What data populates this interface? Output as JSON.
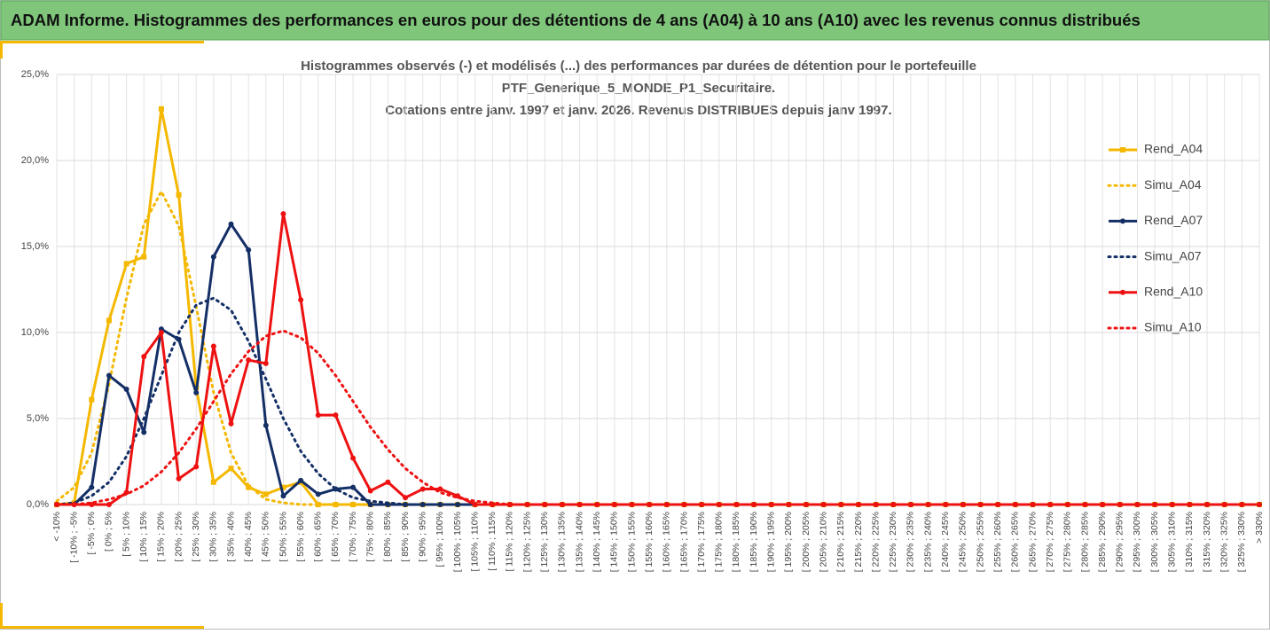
{
  "header": {
    "title": "ADAM Informe. Histogrammes des performances en euros pour des détentions de 4 ans (A04) à 10 ans (A10) avec les revenus connus distribués"
  },
  "chart_data": {
    "type": "line",
    "title": [
      "Histogrammes observés (-) et modélisés (...) des performances par durées de détention pour le portefeuille",
      "PTF_Generique_5_MONDE_P1_Securitaire.",
      "Cotations entre janv. 1997 et janv. 2026. Revenus DISTRIBUES depuis janv 1997."
    ],
    "categories": [
      "< -10%",
      "[ -10% ; -5%",
      "[ -5% ; 0%",
      "[ 0% ; 5%",
      "[ 5% ; 10%",
      "[ 10% ; 15%",
      "[ 15% ; 20%",
      "[ 20% ; 25%",
      "[ 25% ; 30%",
      "[ 30% ; 35%",
      "[ 35% ; 40%",
      "[ 40% ; 45%",
      "[ 45% ; 50%",
      "[ 50% ; 55%",
      "[ 55% ; 60%",
      "[ 60% ; 65%",
      "[ 65% ; 70%",
      "[ 70% ; 75%",
      "[ 75% ; 80%",
      "[ 80% ; 85%",
      "[ 85% ; 90%",
      "[ 90% ; 95%",
      "[ 95% ; 100%",
      "[ 100% ; 105%",
      "[ 105% ; 110%",
      "[ 110% ; 115%",
      "[ 115% ; 120%",
      "[ 120% ; 125%",
      "[ 125% ; 130%",
      "[ 130% ; 135%",
      "[ 135% ; 140%",
      "[ 140% ; 145%",
      "[ 145% ; 150%",
      "[ 150% ; 155%",
      "[ 155% ; 160%",
      "[ 160% ; 165%",
      "[ 165% ; 170%",
      "[ 170% ; 175%",
      "[ 175% ; 180%",
      "[ 180% ; 185%",
      "[ 185% ; 190%",
      "[ 190% ; 195%",
      "[ 195% ; 200%",
      "[ 200% ; 205%",
      "[ 205% ; 210%",
      "[ 210% ; 215%",
      "[ 215% ; 220%",
      "[ 220% ; 225%",
      "[ 225% ; 230%",
      "[ 230% ; 235%",
      "[ 235% ; 240%",
      "[ 240% ; 245%",
      "[ 245% ; 250%",
      "[ 250% ; 255%",
      "[ 255% ; 260%",
      "[ 260% ; 265%",
      "[ 265% ; 270%",
      "[ 270% ; 275%",
      "[ 275% ; 280%",
      "[ 280% ; 285%",
      "[ 285% ; 290%",
      "[ 290% ; 295%",
      "[ 295% ; 300%",
      "[ 300% ; 305%",
      "[ 305% ; 310%",
      "[ 310% ; 315%",
      "[ 315% ; 320%",
      "[ 320% ; 325%",
      "[ 325% ; 330%",
      "> 330%"
    ],
    "series": [
      {
        "name": "Rend_A04",
        "color": "#f5b800",
        "style": "solid",
        "marker": "square",
        "values": [
          0,
          0.1,
          6.1,
          10.7,
          14.0,
          14.4,
          23.0,
          18.0,
          6.8,
          1.3,
          2.1,
          1.0,
          0.6,
          1.0,
          1.3,
          0,
          0,
          0,
          0,
          0,
          0,
          0,
          0,
          0,
          0,
          0,
          0,
          0,
          0,
          0,
          0,
          0,
          0,
          0,
          0,
          0,
          0,
          0,
          0,
          0,
          0,
          0,
          0,
          0,
          0,
          0,
          0,
          0,
          0,
          0,
          0,
          0,
          0,
          0,
          0,
          0,
          0,
          0,
          0,
          0,
          0,
          0,
          0,
          0,
          0,
          0,
          0,
          0,
          0,
          0
        ]
      },
      {
        "name": "Simu_A04",
        "color": "#f5b800",
        "style": "dotted",
        "values": [
          0.2,
          1.0,
          3.0,
          7.0,
          12.0,
          16.3,
          18.2,
          16.2,
          11.5,
          6.5,
          3.0,
          1.1,
          0.3,
          0.1,
          0,
          0,
          0,
          0,
          0,
          0,
          0,
          0,
          0,
          0,
          0,
          0,
          0,
          0,
          0,
          0,
          0,
          0,
          0,
          0,
          0,
          0,
          0,
          0,
          0,
          0,
          0,
          0,
          0,
          0,
          0,
          0,
          0,
          0,
          0,
          0,
          0,
          0,
          0,
          0,
          0,
          0,
          0,
          0,
          0,
          0,
          0,
          0,
          0,
          0,
          0,
          0,
          0,
          0,
          0,
          0
        ]
      },
      {
        "name": "Rend_A07",
        "color": "#142f66",
        "style": "solid",
        "marker": "circle",
        "values": [
          0,
          0,
          1.0,
          7.5,
          6.7,
          4.2,
          10.2,
          9.6,
          6.5,
          14.4,
          16.3,
          14.8,
          4.6,
          0.5,
          1.4,
          0.6,
          0.9,
          1.0,
          0,
          0,
          0,
          0,
          0,
          0,
          0,
          0,
          0,
          0,
          0,
          0,
          0,
          0,
          0,
          0,
          0,
          0,
          0,
          0,
          0,
          0,
          0,
          0,
          0,
          0,
          0,
          0,
          0,
          0,
          0,
          0,
          0,
          0,
          0,
          0,
          0,
          0,
          0,
          0,
          0,
          0,
          0,
          0,
          0,
          0,
          0,
          0,
          0,
          0,
          0,
          0
        ]
      },
      {
        "name": "Simu_A07",
        "color": "#142f66",
        "style": "dotted",
        "values": [
          0,
          0.1,
          0.5,
          1.3,
          2.8,
          5.0,
          7.5,
          10.0,
          11.6,
          12.0,
          11.3,
          9.5,
          7.3,
          5.0,
          3.1,
          1.8,
          0.9,
          0.4,
          0.2,
          0.1,
          0,
          0,
          0,
          0,
          0,
          0,
          0,
          0,
          0,
          0,
          0,
          0,
          0,
          0,
          0,
          0,
          0,
          0,
          0,
          0,
          0,
          0,
          0,
          0,
          0,
          0,
          0,
          0,
          0,
          0,
          0,
          0,
          0,
          0,
          0,
          0,
          0,
          0,
          0,
          0,
          0,
          0,
          0,
          0,
          0,
          0,
          0,
          0,
          0,
          0
        ]
      },
      {
        "name": "Rend_A10",
        "color": "#ee1111",
        "style": "solid",
        "marker": "circle",
        "values": [
          0,
          0,
          0,
          0,
          0.7,
          8.6,
          10.0,
          1.5,
          2.2,
          9.2,
          4.7,
          8.4,
          8.2,
          16.9,
          11.9,
          5.2,
          5.2,
          2.7,
          0.8,
          1.3,
          0.4,
          0.9,
          0.9,
          0.5,
          0,
          0,
          0,
          0,
          0,
          0,
          0,
          0,
          0,
          0,
          0,
          0,
          0,
          0,
          0,
          0,
          0,
          0,
          0,
          0,
          0,
          0,
          0,
          0,
          0,
          0,
          0,
          0,
          0,
          0,
          0,
          0,
          0,
          0,
          0,
          0,
          0,
          0,
          0,
          0,
          0,
          0,
          0,
          0,
          0,
          0
        ]
      },
      {
        "name": "Simu_A10",
        "color": "#ee1111",
        "style": "dotted",
        "values": [
          0,
          0,
          0.1,
          0.3,
          0.6,
          1.1,
          1.9,
          3.0,
          4.4,
          6.0,
          7.6,
          8.9,
          9.8,
          10.1,
          9.7,
          8.8,
          7.5,
          6.0,
          4.5,
          3.2,
          2.1,
          1.3,
          0.7,
          0.4,
          0.2,
          0.1,
          0,
          0,
          0,
          0,
          0,
          0,
          0,
          0,
          0,
          0,
          0,
          0,
          0,
          0,
          0,
          0,
          0,
          0,
          0,
          0,
          0,
          0,
          0,
          0,
          0,
          0,
          0,
          0,
          0,
          0,
          0,
          0,
          0,
          0,
          0,
          0,
          0,
          0,
          0,
          0,
          0,
          0,
          0,
          0
        ]
      }
    ],
    "ylim": [
      0,
      25
    ],
    "yticks": [
      {
        "value": 0,
        "label": "0,0%"
      },
      {
        "value": 5,
        "label": "5,0%"
      },
      {
        "value": 10,
        "label": "10,0%"
      },
      {
        "value": 15,
        "label": "15,0%"
      },
      {
        "value": 20,
        "label": "20,0%"
      },
      {
        "value": 25,
        "label": "25,0%"
      }
    ],
    "grid": true,
    "legend": "right"
  }
}
